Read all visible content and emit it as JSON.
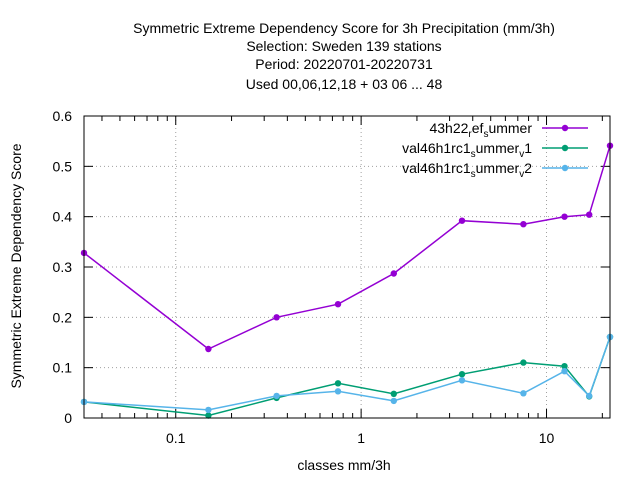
{
  "chart_data": {
    "type": "line",
    "title_lines": [
      "Symmetric Extreme Dependency Score  for 3h Precipitation (mm/3h)",
      "Selection: Sweden    139 stations",
      "Period: 20220701-20220731",
      "Used  00,06,12,18  + 03 06 ... 48"
    ],
    "xlabel": "classes mm/3h",
    "ylabel": "Symmetric Extreme Dependency Score",
    "x_scale": "log",
    "xlim": [
      0.032,
      22
    ],
    "ylim": [
      0,
      0.6
    ],
    "x_ticks": [
      {
        "value": 0.1,
        "label": "0.1"
      },
      {
        "value": 1,
        "label": "1"
      },
      {
        "value": 10,
        "label": "10"
      }
    ],
    "y_ticks": [
      {
        "value": 0,
        "label": "0"
      },
      {
        "value": 0.1,
        "label": "0.1"
      },
      {
        "value": 0.2,
        "label": "0.2"
      },
      {
        "value": 0.3,
        "label": "0.3"
      },
      {
        "value": 0.4,
        "label": "0.4"
      },
      {
        "value": 0.5,
        "label": "0.5"
      },
      {
        "value": 0.6,
        "label": "0.6"
      }
    ],
    "grid": true,
    "legend_position": "top-right",
    "x": [
      0.032,
      0.15,
      0.35,
      0.75,
      1.5,
      3.5,
      7.5,
      12.5,
      17,
      22
    ],
    "series": [
      {
        "name_parts": [
          [
            "43h22",
            "base"
          ],
          [
            "r",
            "sub"
          ],
          [
            "ef",
            "base"
          ],
          [
            "s",
            "sub"
          ],
          [
            "ummer",
            "base"
          ]
        ],
        "color": "#9400d3",
        "values": [
          0.328,
          0.137,
          0.2,
          0.226,
          0.287,
          0.392,
          0.385,
          0.4,
          0.404,
          0.541
        ]
      },
      {
        "name_parts": [
          [
            "val46h1rc1",
            "base"
          ],
          [
            "s",
            "sub"
          ],
          [
            "ummer",
            "base"
          ],
          [
            "v",
            "sub"
          ],
          [
            "1",
            "base"
          ]
        ],
        "color": "#009e73",
        "values": [
          0.032,
          0.005,
          0.04,
          0.069,
          0.048,
          0.087,
          0.11,
          0.103,
          0.043,
          0.161
        ]
      },
      {
        "name_parts": [
          [
            "val46h1rc1",
            "base"
          ],
          [
            "s",
            "sub"
          ],
          [
            "ummer",
            "base"
          ],
          [
            "v",
            "sub"
          ],
          [
            "2",
            "base"
          ]
        ],
        "color": "#56b4e9",
        "values": [
          0.032,
          0.016,
          0.044,
          0.053,
          0.034,
          0.075,
          0.049,
          0.093,
          0.044,
          0.161
        ]
      }
    ]
  }
}
